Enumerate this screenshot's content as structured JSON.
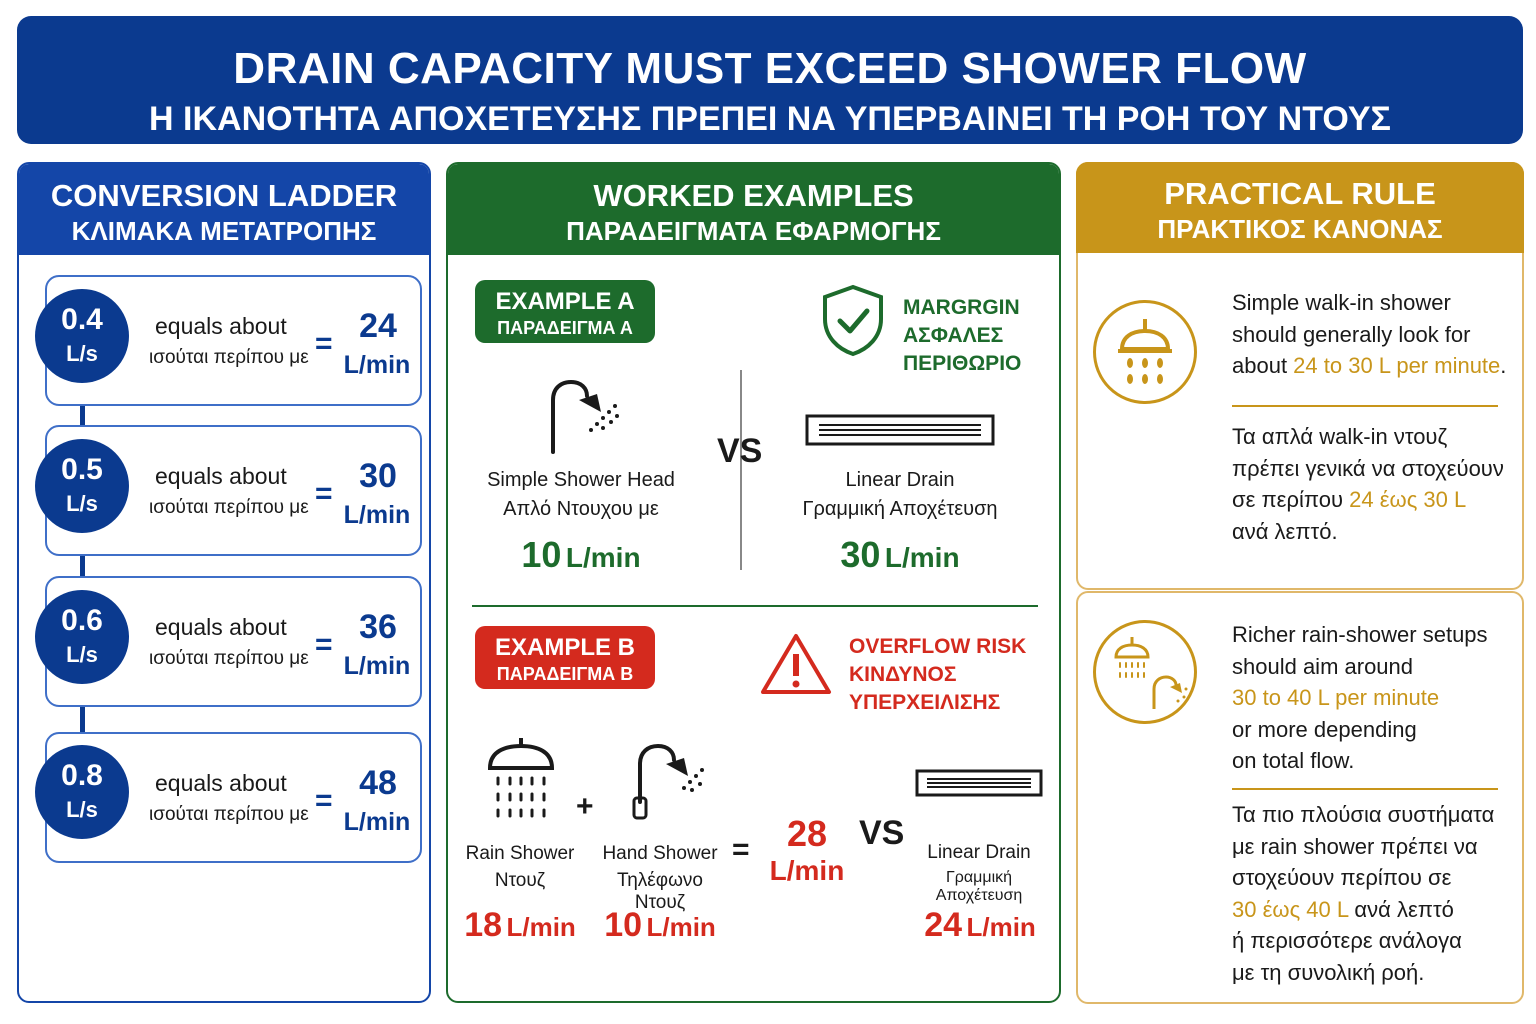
{
  "banner": {
    "title_en": "DRAIN CAPACITY MUST EXCEED SHOWER FLOW",
    "title_el": "Η ΙΚΑΝΟΤΗΤΑ ΑΠΟΧΕΤΕΥΣΗΣ ΠΡΕΠΕΙ ΝΑ ΥΠΕΡΒΑΙΝΕΙ ΤΗ ΡΟΗ ΤΟΥ ΝΤΟΥΣ"
  },
  "colors": {
    "blue": "#0b3a8f",
    "green": "#1d6b2c",
    "red": "#d42a1e",
    "gold": "#c8951a"
  },
  "ladder": {
    "title_en": "CONVERSION LADDER",
    "title_el": "ΚΛΙΜΑΚΑ ΜΕΤΑΤΡΟΠΗΣ",
    "equals_en": "equals about",
    "equals_el": "ισούται περίπου με",
    "eq_sign": "=",
    "rungs": [
      {
        "ls": "0.4",
        "ls_unit": "L/s",
        "lmin": "24",
        "lmin_unit": "L/min"
      },
      {
        "ls": "0.5",
        "ls_unit": "L/s",
        "lmin": "30",
        "lmin_unit": "L/min"
      },
      {
        "ls": "0.6",
        "ls_unit": "L/s",
        "lmin": "36",
        "lmin_unit": "L/min"
      },
      {
        "ls": "0.8",
        "ls_unit": "L/s",
        "lmin": "48",
        "lmin_unit": "L/min"
      }
    ]
  },
  "examples": {
    "title_en": "WORKED EXAMPLES",
    "title_el": "ΠΑΡΑΔΕΙΓΜΑΤΑ ΕΦΑΡΜΟΓΗΣ",
    "vs": "VS",
    "a": {
      "tag_en": "EXAMPLE A",
      "tag_el": "ΠΑΡΑΔΕΙΓΜΑ Α",
      "status": [
        "MARGRGIN",
        "ΑΣΦΑΛΕΣ",
        "ΠΕΡΙΘΩΡΙΟ"
      ],
      "shower_label_en": "Simple Shower Head",
      "shower_label_el": "Απλό Ντουχου με",
      "shower_value": "10",
      "drain_label_en": "Linear Drain",
      "drain_label_el": "Γραμμική Αποχέτευση",
      "drain_value": "30",
      "unit": "L/min"
    },
    "b": {
      "tag_en": "EXAMPLE B",
      "tag_el": "ΠΑΡΑΔΕΙΓΜΑ Β",
      "status": [
        "OVERFLOW RISK",
        "ΚΙΝΔΥΝΟΣ",
        "ΥΠΕΡΧΕΙΛΙΣΗΣ"
      ],
      "rain_label_en": "Rain Shower",
      "rain_label_el": "Ντουζ",
      "rain_value": "18",
      "hand_label_en": "Hand Shower",
      "hand_label_el": "Τηλέφωνο Ντουζ",
      "hand_value": "10",
      "plus": "+",
      "equals": "=",
      "total_value": "28",
      "drain_label_en": "Linear Drain",
      "drain_label_el": "Γραμμική Αποχέτευση",
      "drain_value": "24",
      "unit": "L/min"
    }
  },
  "rule": {
    "title_en": "PRACTICAL RULE",
    "title_el": "ΠΡΑΚΤΙΚΟΣ ΚΑΝΟΝΑΣ",
    "card1": {
      "en_1": "Simple walk-in shower",
      "en_2": "should generally look for",
      "en_3a": "about ",
      "en_3b": "24 to 30 L per minute",
      "en_3c": ".",
      "el_1": "Τα απλά walk-in ντουζ",
      "el_2": "πρέπει γενικά να στοχεύουν",
      "el_3a": "σε περίπου ",
      "el_3b": "24 έως 30 L",
      "el_4": "ανά λεπτό."
    },
    "card2": {
      "en_1": "Richer rain-shower setups",
      "en_2": "should aim around",
      "en_3": "30 to 40 L per minute",
      "en_4": "or more depending",
      "en_5": "on total flow.",
      "el_1": "Τα πιο πλούσια συστήματα",
      "el_2": "με rain shower πρέπει να",
      "el_3": "στοχεύουν περίπου σε",
      "el_4a": "30 έως 40 L",
      "el_4b": " ανά λεπτό",
      "el_5": "ή περισσότερε ανάλογα",
      "el_6": "με τη συνολική ροή."
    }
  }
}
